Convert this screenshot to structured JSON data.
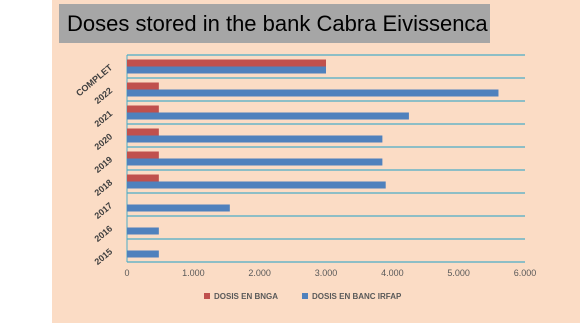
{
  "colors": {
    "background": "#fbdcc5",
    "title_band": "#a6a6a6",
    "grid": "#4bacc6",
    "series_bnga": "#c0504d",
    "series_irfap": "#4f81bd"
  },
  "chart_data": {
    "type": "bar",
    "orientation": "horizontal",
    "title": "Doses stored in the bank Cabra Eivissenca",
    "categories": [
      "2015",
      "2016",
      "2017",
      "2018",
      "2019",
      "2020",
      "2021",
      "2022",
      "COMPLET"
    ],
    "series": [
      {
        "name": "DOSIS EN BNGA",
        "values": [
          null,
          null,
          null,
          480,
          480,
          480,
          480,
          480,
          3000
        ]
      },
      {
        "name": "DOSIS EN BANC IRFAP",
        "values": [
          480,
          480,
          1550,
          3900,
          3850,
          3850,
          4250,
          5600,
          3000
        ]
      }
    ],
    "x_ticks": [
      "0",
      "1.000",
      "2.000",
      "3.000",
      "4.000",
      "5.000",
      "6.000"
    ],
    "xlim": [
      0,
      6000
    ],
    "grid": true,
    "legend_position": "bottom"
  }
}
